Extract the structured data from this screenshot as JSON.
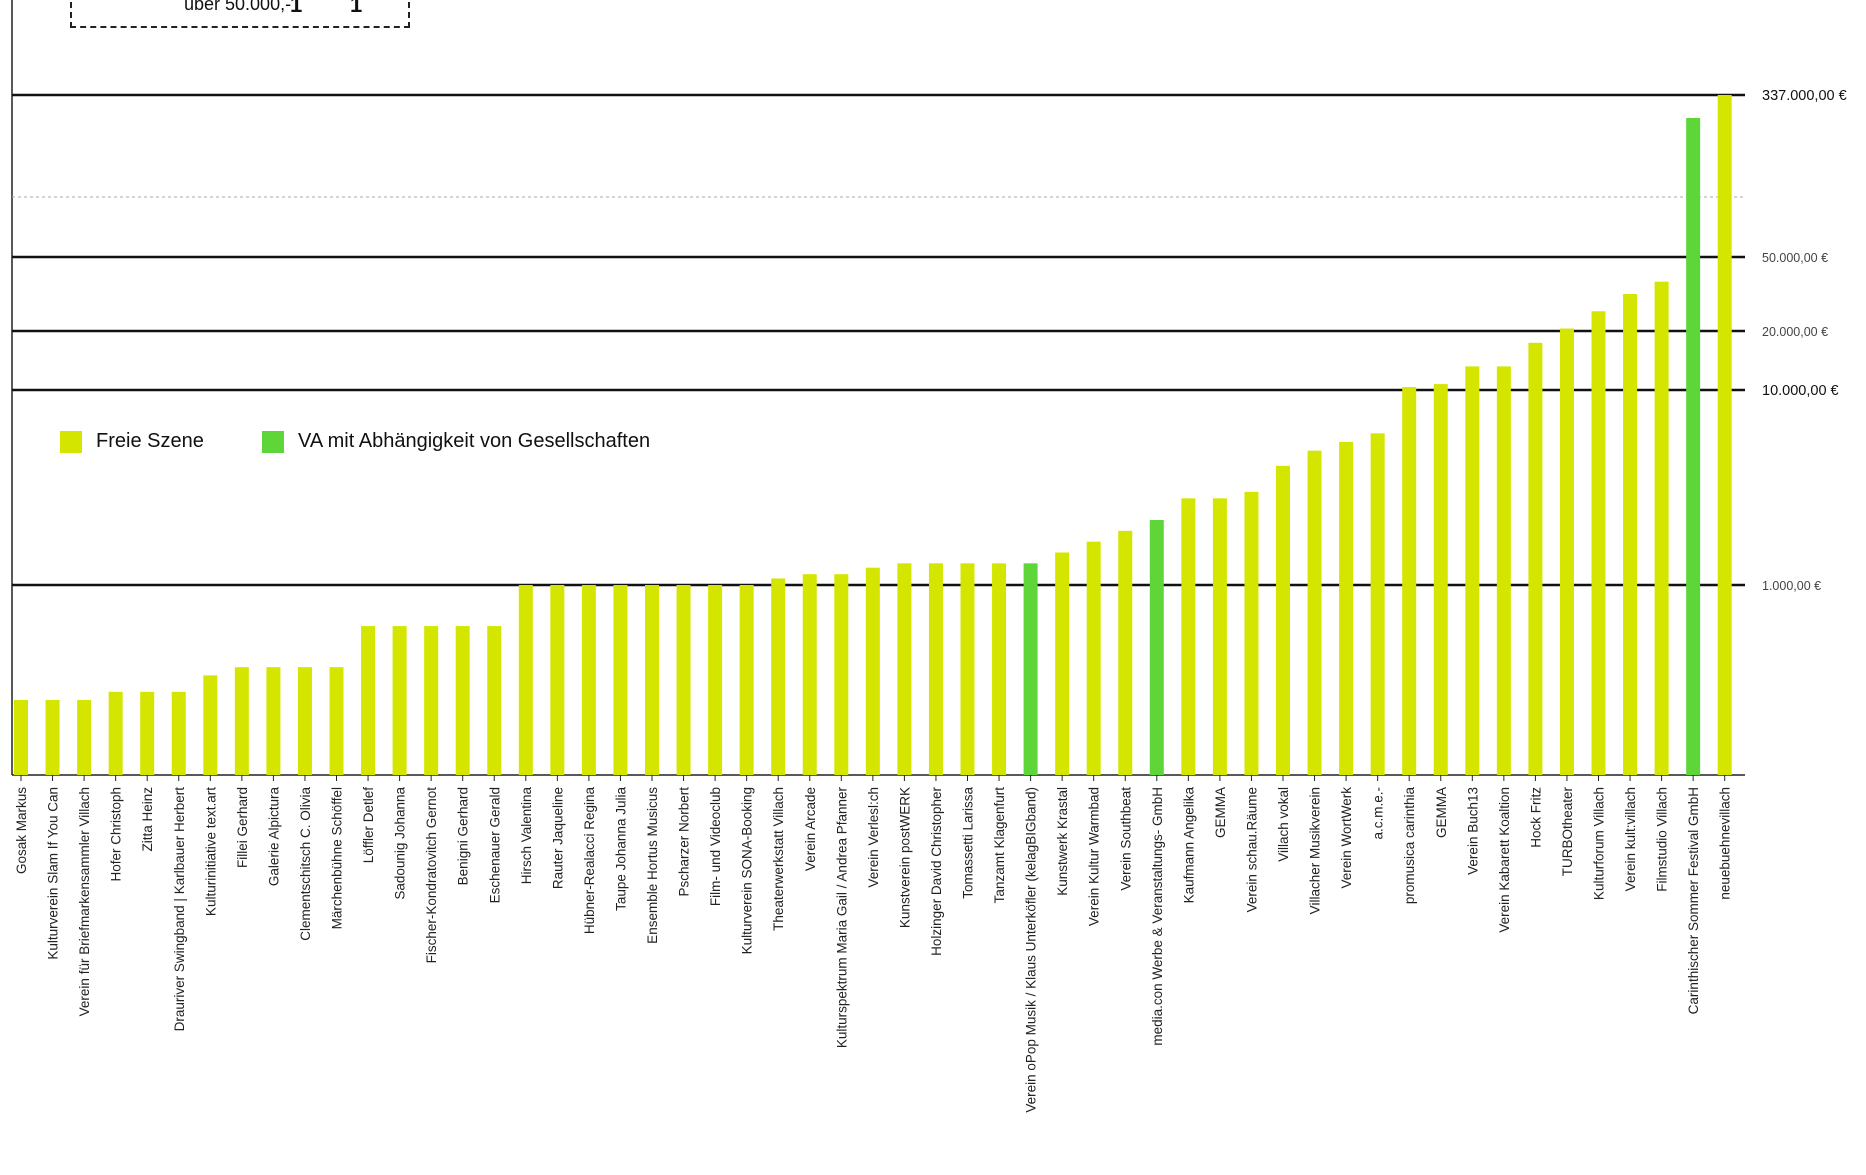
{
  "summary_box": {
    "label": "über 50.000,-",
    "value_a": "1",
    "value_b": "1"
  },
  "legend": [
    {
      "name": "Freie Szene",
      "color": "#d4e600"
    },
    {
      "name": "VA mit Abhängigkeit von Gesellschaften",
      "color": "#5ed63a"
    }
  ],
  "chart_data": {
    "type": "bar",
    "colors": {
      "freie": "#d4e600",
      "va": "#5ed63a"
    },
    "reference_lines": [
      {
        "label": "337.000,00 €",
        "bold": true
      },
      {
        "label": "50.000,00 €",
        "bold": false
      },
      {
        "label": "20.000,00 €",
        "bold": false
      },
      {
        "label": "10.000,00 €",
        "bold": true
      },
      {
        "label": "1.000,00 €",
        "bold": false
      }
    ],
    "bars": [
      {
        "name": "Gosak Markus",
        "value": 300,
        "group": "freie"
      },
      {
        "name": "Kulturverein Slam If You Can",
        "value": 300,
        "group": "freie"
      },
      {
        "name": "Verein für Briefmarkensammler Villach",
        "value": 300,
        "group": "freie"
      },
      {
        "name": "Hofer Christoph",
        "value": 350,
        "group": "freie"
      },
      {
        "name": "Zitta Heinz",
        "value": 350,
        "group": "freie"
      },
      {
        "name": "Drauriver Swingband | Karlbauer Herbert",
        "value": 350,
        "group": "freie"
      },
      {
        "name": "Kulturinitiative text.art",
        "value": 450,
        "group": "freie"
      },
      {
        "name": "Fillei Gerhard",
        "value": 500,
        "group": "freie"
      },
      {
        "name": "Galerie Alpictura",
        "value": 500,
        "group": "freie"
      },
      {
        "name": "Clementschitsch C. Olivia",
        "value": 500,
        "group": "freie"
      },
      {
        "name": "Märchenbühne Schöffel",
        "value": 500,
        "group": "freie"
      },
      {
        "name": "Löffler Detlef",
        "value": 750,
        "group": "freie"
      },
      {
        "name": "Sadounig Johanna",
        "value": 750,
        "group": "freie"
      },
      {
        "name": "Fischer-Kondratovitch Gernot",
        "value": 750,
        "group": "freie"
      },
      {
        "name": "Benigni Gerhard",
        "value": 750,
        "group": "freie"
      },
      {
        "name": "Eschenauer Gerald",
        "value": 750,
        "group": "freie"
      },
      {
        "name": "Hirsch Valentina",
        "value": 1000,
        "group": "freie"
      },
      {
        "name": "Rauter Jaqueline",
        "value": 1000,
        "group": "freie"
      },
      {
        "name": "Hübner-Realacci Regina",
        "value": 1000,
        "group": "freie"
      },
      {
        "name": "Taupe Johanna Julia",
        "value": 1000,
        "group": "freie"
      },
      {
        "name": "Ensemble Hortus Musicus",
        "value": 1000,
        "group": "freie"
      },
      {
        "name": "Pscharzer Norbert",
        "value": 1000,
        "group": "freie"
      },
      {
        "name": "Film- und Videoclub",
        "value": 1000,
        "group": "freie"
      },
      {
        "name": "Kulturverein SONA-Booking",
        "value": 1000,
        "group": "freie"
      },
      {
        "name": "Theaterwerkstatt Villach",
        "value": 1300,
        "group": "freie"
      },
      {
        "name": "Verein Arcade",
        "value": 1500,
        "group": "freie"
      },
      {
        "name": "Kulturspektrum Maria Gail / Andrea Pfanner",
        "value": 1500,
        "group": "freie"
      },
      {
        "name": "Verein Verlesl:ch",
        "value": 1800,
        "group": "freie"
      },
      {
        "name": "Kunstverein postWERK",
        "value": 2000,
        "group": "freie"
      },
      {
        "name": "Holzinger David Christopher",
        "value": 2000,
        "group": "freie"
      },
      {
        "name": "Tomassetti Larissa",
        "value": 2000,
        "group": "freie"
      },
      {
        "name": "Tanzamt Klagenfurt",
        "value": 2000,
        "group": "freie"
      },
      {
        "name": "Verein oPop Musik / Klaus Unterköfler (kelagBIGband)",
        "value": 2000,
        "group": "va"
      },
      {
        "name": "Kunstwerk Krastal",
        "value": 2500,
        "group": "freie"
      },
      {
        "name": "Verein Kultur Warmbad",
        "value": 3000,
        "group": "freie"
      },
      {
        "name": "Verein Southbeat",
        "value": 3500,
        "group": "freie"
      },
      {
        "name": "media.con Werbe & Veranstaltungs- GmbH",
        "value": 4000,
        "group": "va"
      },
      {
        "name": "Kaufmann Angelika",
        "value": 5000,
        "group": "freie"
      },
      {
        "name": "GEMMA",
        "value": 5000,
        "group": "freie"
      },
      {
        "name": "Verein schau.Räume",
        "value": 5300,
        "group": "freie"
      },
      {
        "name": "Villach vokal",
        "value": 6500,
        "group": "freie"
      },
      {
        "name": "Villacher Musikverein",
        "value": 7200,
        "group": "freie"
      },
      {
        "name": "Verein WortWerk",
        "value": 7600,
        "group": "freie"
      },
      {
        "name": "a.c.m.e.-",
        "value": 8000,
        "group": "freie"
      },
      {
        "name": "promusica carinthia",
        "value": 10500,
        "group": "freie"
      },
      {
        "name": "GEMMA",
        "value": 11000,
        "group": "freie"
      },
      {
        "name": "Verein Buch13",
        "value": 14000,
        "group": "freie"
      },
      {
        "name": "Verein Kabarett Koaltion",
        "value": 14000,
        "group": "freie"
      },
      {
        "name": "Hock Fritz",
        "value": 18000,
        "group": "freie"
      },
      {
        "name": "TURBOtheater",
        "value": 21000,
        "group": "freie"
      },
      {
        "name": "Kulturforum Villach",
        "value": 28000,
        "group": "freie"
      },
      {
        "name": "Verein kult:villach",
        "value": 35000,
        "group": "freie"
      },
      {
        "name": "Filmstudio Villach",
        "value": 40000,
        "group": "freie"
      },
      {
        "name": "Carinthischer Sommer Festival GmbH",
        "value": 300000,
        "group": "va"
      },
      {
        "name": "neuebuehnevillach",
        "value": 337000,
        "group": "freie"
      }
    ]
  }
}
